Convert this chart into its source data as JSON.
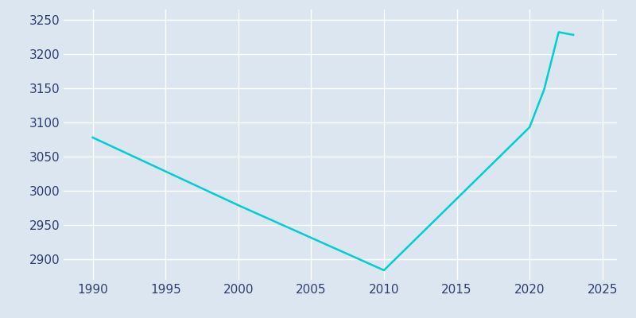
{
  "years": [
    1990,
    2000,
    2010,
    2020,
    2021,
    2022,
    2023
  ],
  "population": [
    3078,
    2979,
    2884,
    3093,
    3148,
    3232,
    3228
  ],
  "line_color": "#00CED1",
  "background_color": "#dce6f0",
  "grid_color": "#ffffff",
  "text_color": "#2d3e6e",
  "xlim": [
    1988,
    2026
  ],
  "ylim": [
    2870,
    3265
  ],
  "xticks": [
    1990,
    1995,
    2000,
    2005,
    2010,
    2015,
    2020,
    2025
  ],
  "yticks": [
    2900,
    2950,
    3000,
    3050,
    3100,
    3150,
    3200,
    3250
  ],
  "line_width": 1.8
}
